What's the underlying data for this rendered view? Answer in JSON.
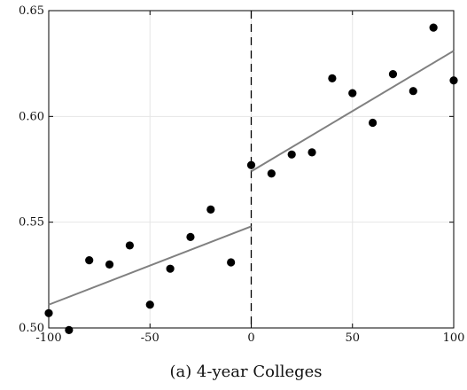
{
  "chart_data": {
    "type": "scatter",
    "caption": "(a) 4-year Colleges",
    "xlim": [
      -100,
      100
    ],
    "ylim": [
      0.5,
      0.65
    ],
    "x_ticks": [
      -100,
      -50,
      0,
      50,
      100
    ],
    "x_tick_labels": [
      "-100",
      "-50",
      "0",
      "50",
      "100"
    ],
    "y_ticks": [
      0.5,
      0.55,
      0.6,
      0.65
    ],
    "y_tick_labels": [
      "0.50",
      "0.55",
      "0.60",
      "0.65"
    ],
    "grid": true,
    "cutoff_line": {
      "x": 0,
      "style": "dashed"
    },
    "points": [
      {
        "x": -100,
        "y": 0.507
      },
      {
        "x": -90,
        "y": 0.499
      },
      {
        "x": -80,
        "y": 0.532
      },
      {
        "x": -70,
        "y": 0.53
      },
      {
        "x": -60,
        "y": 0.539
      },
      {
        "x": -50,
        "y": 0.511
      },
      {
        "x": -40,
        "y": 0.528
      },
      {
        "x": -30,
        "y": 0.543
      },
      {
        "x": -20,
        "y": 0.556
      },
      {
        "x": -10,
        "y": 0.531
      },
      {
        "x": 0,
        "y": 0.577
      },
      {
        "x": 10,
        "y": 0.573
      },
      {
        "x": 20,
        "y": 0.582
      },
      {
        "x": 30,
        "y": 0.583
      },
      {
        "x": 40,
        "y": 0.618
      },
      {
        "x": 50,
        "y": 0.611
      },
      {
        "x": 60,
        "y": 0.597
      },
      {
        "x": 70,
        "y": 0.62
      },
      {
        "x": 80,
        "y": 0.612
      },
      {
        "x": 90,
        "y": 0.642
      },
      {
        "x": 100,
        "y": 0.617
      }
    ],
    "fit_lines": [
      {
        "segment": "left",
        "x": [
          -100,
          0
        ],
        "y": [
          0.511,
          0.548
        ]
      },
      {
        "segment": "right",
        "x": [
          0,
          100
        ],
        "y": [
          0.574,
          0.631
        ]
      }
    ],
    "colors": {
      "points": "#000000",
      "fit": "#808080",
      "grid": "#e6e6e6",
      "axis": "#000000"
    }
  }
}
